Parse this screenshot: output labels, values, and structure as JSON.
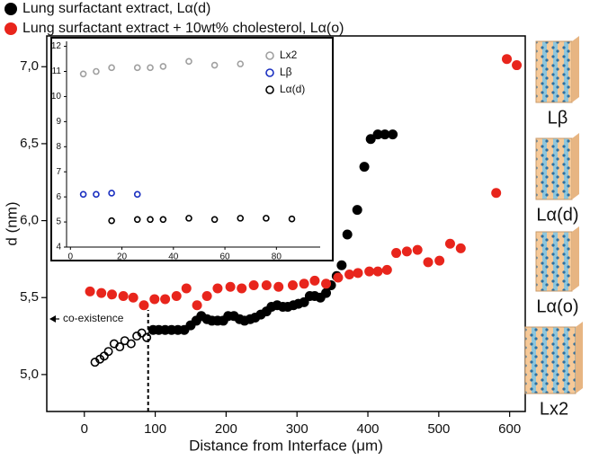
{
  "chart_data": [
    {
      "type": "scatter",
      "x_label": "Distance from Interface (μm)",
      "y_label": "d (nm)",
      "xlim": [
        -53,
        622
      ],
      "ylim": [
        4.76,
        7.2
      ],
      "xticks": [
        0,
        100,
        200,
        300,
        400,
        500,
        600
      ],
      "yticks": [
        {
          "value": 5.0,
          "label": "5,0"
        },
        {
          "value": 5.5,
          "label": "5,5"
        },
        {
          "value": 6.0,
          "label": "6,0"
        },
        {
          "value": 6.5,
          "label": "6,5"
        },
        {
          "value": 7.0,
          "label": "7,0"
        }
      ],
      "annotation": {
        "text": "co-existence",
        "x": 90
      },
      "series": [
        {
          "name": "Lung surfactant extract, Lα(d)",
          "color": "#000000",
          "x": [
            15,
            22,
            28,
            34,
            42,
            50,
            57,
            66,
            74,
            81,
            88,
            97,
            105,
            114,
            123,
            132,
            141,
            150,
            158,
            165,
            173,
            180,
            188,
            196,
            203,
            211,
            219,
            226,
            234,
            241,
            249,
            257,
            264,
            272,
            280,
            287,
            295,
            302,
            310,
            318,
            325,
            333,
            341,
            348,
            356,
            363,
            371,
            385,
            395,
            404,
            414,
            424,
            435
          ],
          "values": [
            5.08,
            5.1,
            5.12,
            5.15,
            5.2,
            5.18,
            5.22,
            5.2,
            5.25,
            5.27,
            5.24,
            5.29,
            5.29,
            5.29,
            5.29,
            5.29,
            5.29,
            5.32,
            5.35,
            5.38,
            5.36,
            5.35,
            5.35,
            5.35,
            5.38,
            5.38,
            5.36,
            5.35,
            5.36,
            5.37,
            5.39,
            5.41,
            5.44,
            5.45,
            5.44,
            5.44,
            5.45,
            5.46,
            5.47,
            5.51,
            5.51,
            5.5,
            5.53,
            5.58,
            5.64,
            5.71,
            5.91,
            6.07,
            6.35,
            6.53,
            6.56,
            6.56,
            6.56
          ]
        },
        {
          "name": "Lung surfactant extract + 10wt% cholesterol, Lα(o)",
          "color": "#e8251c",
          "x": [
            8,
            24,
            39,
            55,
            69,
            84,
            99,
            114,
            130,
            144,
            159,
            173,
            188,
            206,
            222,
            239,
            257,
            274,
            294,
            310,
            325,
            341,
            358,
            374,
            386,
            402,
            414,
            427,
            440,
            455,
            470,
            485,
            501,
            516,
            531,
            581,
            596,
            610
          ],
          "values": [
            5.54,
            5.53,
            5.52,
            5.51,
            5.5,
            5.45,
            5.49,
            5.49,
            5.51,
            5.56,
            5.45,
            5.51,
            5.56,
            5.57,
            5.56,
            5.58,
            5.58,
            5.57,
            5.58,
            5.59,
            5.61,
            5.59,
            5.63,
            5.65,
            5.66,
            5.67,
            5.67,
            5.68,
            5.79,
            5.8,
            5.81,
            5.73,
            5.74,
            5.85,
            5.82,
            6.18,
            7.05,
            7.01
          ]
        }
      ]
    },
    {
      "type": "scatter",
      "xlim": [
        -1.5,
        97
      ],
      "ylim": [
        4,
        12.2
      ],
      "xticks": [
        0,
        20,
        40,
        60,
        80
      ],
      "yticks": [
        4,
        5,
        6,
        7,
        8,
        9,
        10,
        11,
        12
      ],
      "series": [
        {
          "name": "Lx2",
          "color": "#a0a0a0",
          "x": [
            5,
            10,
            16,
            26,
            31,
            36,
            46,
            56,
            66
          ],
          "values": [
            10.9,
            11.0,
            11.15,
            11.15,
            11.15,
            11.2,
            11.4,
            11.25,
            11.3
          ]
        },
        {
          "name": "Lβ",
          "color": "#1a2fc0",
          "x": [
            5,
            10,
            16,
            26
          ],
          "values": [
            6.1,
            6.1,
            6.15,
            6.1
          ]
        },
        {
          "name": "Lα(d)",
          "color": "#000000",
          "x": [
            16,
            26,
            31,
            36,
            46,
            56,
            66,
            76,
            86
          ],
          "values": [
            5.05,
            5.1,
            5.1,
            5.1,
            5.15,
            5.1,
            5.15,
            5.15,
            5.12
          ]
        }
      ]
    }
  ],
  "side_panel": {
    "labels": [
      "Lβ",
      "Lα(d)",
      "Lα(o)",
      "Lx2"
    ]
  }
}
